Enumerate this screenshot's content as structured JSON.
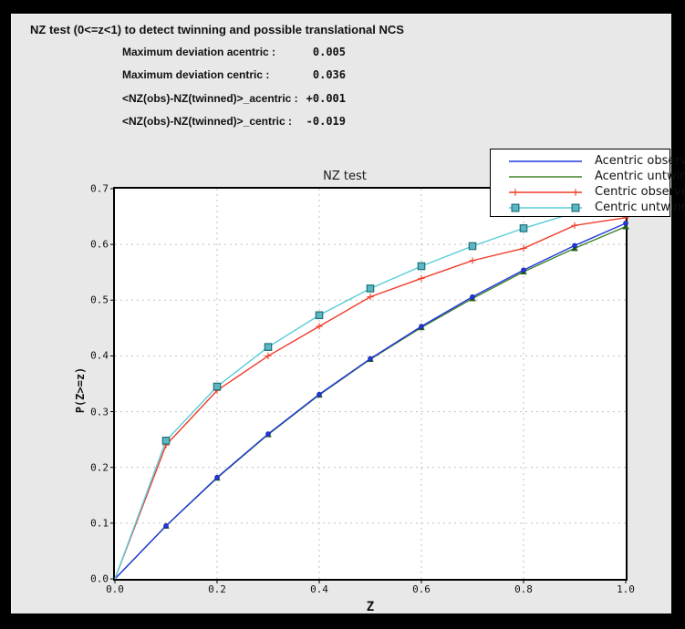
{
  "window": {
    "title": "NZ test (0<=z<1) to detect twinning and possible translational NCS"
  },
  "stats": {
    "rows": [
      {
        "label": "Maximum deviation acentric :",
        "value": "0.005"
      },
      {
        "label": "Maximum deviation centric :",
        "value": "0.036"
      },
      {
        "label": "<NZ(obs)-NZ(twinned)>_acentric :",
        "value": "+0.001"
      },
      {
        "label": "<NZ(obs)-NZ(twinned)>_centric :",
        "value": "-0.019"
      }
    ]
  },
  "chart_data": {
    "type": "line",
    "title": "NZ test",
    "xlabel": "Z",
    "ylabel": "P(Z>=z)",
    "xlim": [
      0.0,
      1.0
    ],
    "ylim": [
      0.0,
      0.7
    ],
    "grid": true,
    "legend_position": "upper right",
    "x": [
      0.0,
      0.1,
      0.2,
      0.3,
      0.4,
      0.5,
      0.6,
      0.7,
      0.8,
      0.9,
      1.0
    ],
    "x_ticks": [
      {
        "value": 0.0,
        "label": "0.0"
      },
      {
        "value": 0.2,
        "label": "0.2"
      },
      {
        "value": 0.4,
        "label": "0.4"
      },
      {
        "value": 0.6,
        "label": "0.6"
      },
      {
        "value": 0.8,
        "label": "0.8"
      },
      {
        "value": 1.0,
        "label": "1.0"
      }
    ],
    "y_ticks": [
      {
        "value": 0.0,
        "label": "0.0"
      },
      {
        "value": 0.1,
        "label": "0.1"
      },
      {
        "value": 0.2,
        "label": "0.2"
      },
      {
        "value": 0.3,
        "label": "0.3"
      },
      {
        "value": 0.4,
        "label": "0.4"
      },
      {
        "value": 0.5,
        "label": "0.5"
      },
      {
        "value": 0.6,
        "label": "0.6"
      },
      {
        "value": 0.7,
        "label": "0.7"
      }
    ],
    "x_grid": [
      0.2,
      0.4,
      0.6,
      0.8
    ],
    "y_grid": [
      0.1,
      0.2,
      0.3,
      0.4,
      0.5,
      0.6
    ],
    "colors": {
      "grid": "#c0c0c0",
      "frame": "#000000",
      "plot_bg": "#ffffff",
      "panel_bg": "#e8e8e8"
    },
    "series": [
      {
        "name": "acentric-observed",
        "label": "Acentric observed",
        "color": "#2038dd",
        "marker": "dot",
        "marker_color": "#16249b",
        "values": [
          0.0,
          0.095,
          0.182,
          0.26,
          0.331,
          0.395,
          0.453,
          0.506,
          0.554,
          0.598,
          0.638
        ]
      },
      {
        "name": "acentric-untwinned",
        "label": "Acentric untwinned",
        "color": "#41802f",
        "marker": "triangle",
        "marker_color": "#275e1e",
        "values": [
          0.0,
          0.095,
          0.181,
          0.259,
          0.33,
          0.394,
          0.451,
          0.503,
          0.551,
          0.593,
          0.632
        ]
      },
      {
        "name": "centric-observed",
        "label": "Centric observed",
        "color": "#f03c2b",
        "marker": "plus",
        "marker_color": "#f03c2b",
        "values": [
          0.0,
          0.24,
          0.338,
          0.4,
          0.453,
          0.506,
          0.539,
          0.571,
          0.593,
          0.634,
          0.648
        ]
      },
      {
        "name": "centric-untwinned",
        "label": "Centric untwinned",
        "color": "#58cdd9",
        "marker": "square",
        "marker_fill": "#5cb7c3",
        "marker_edge": "#1e6f78",
        "values": [
          0.0,
          0.248,
          0.345,
          0.416,
          0.473,
          0.521,
          0.561,
          0.597,
          0.629,
          0.657,
          0.683
        ]
      }
    ]
  }
}
